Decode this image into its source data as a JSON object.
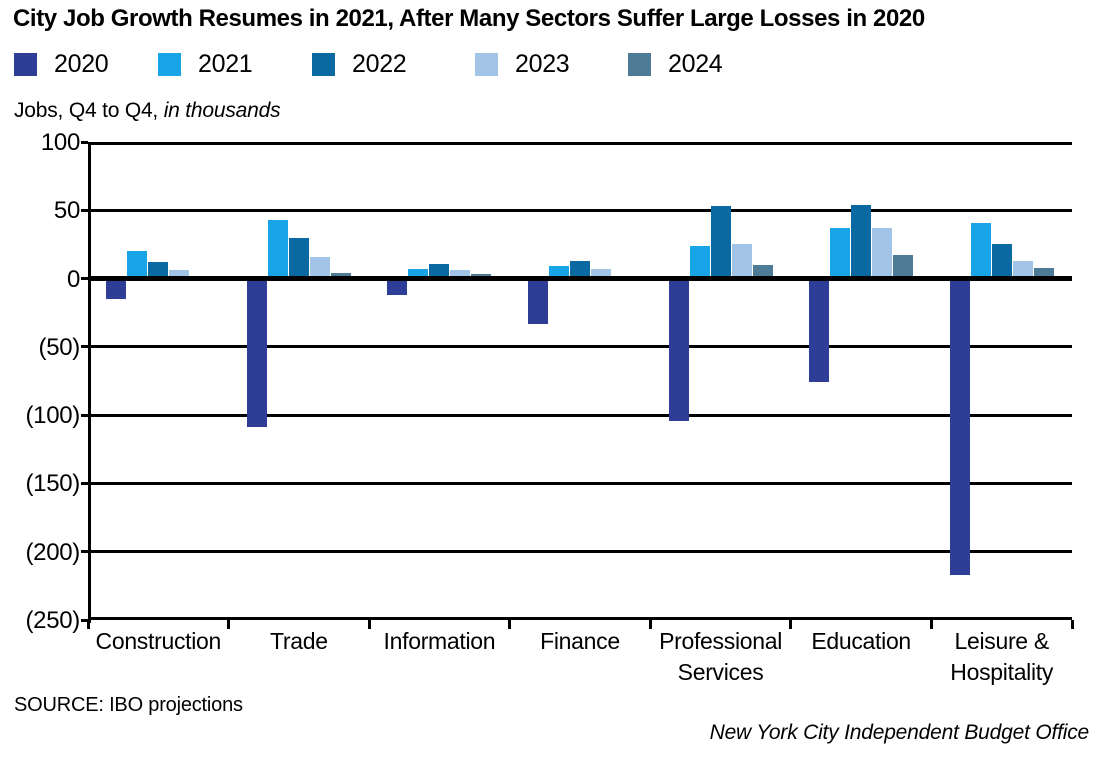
{
  "title": "City Job Growth Resumes in 2021, After Many Sectors Suffer Large Losses in 2020",
  "subtitle": {
    "text": "Jobs, Q4 to Q4, ",
    "italic": "in thousands"
  },
  "source": "SOURCE: IBO projections",
  "attribution": "New York City Independent Budget Office",
  "chart_data": {
    "type": "bar",
    "title": "City Job Growth Resumes in 2021, After Many Sectors Suffer Large Losses in 2020",
    "ylabel": "Jobs, Q4 to Q4, in thousands",
    "categories": [
      "Construction",
      "Trade",
      "Information",
      "Finance",
      "Professional Services",
      "Education",
      "Leisure & Hospitality"
    ],
    "series": [
      {
        "name": "2020",
        "color": "#2e3d96",
        "values": [
          -15,
          -109,
          -12,
          -33,
          -104,
          -76,
          -217
        ]
      },
      {
        "name": "2021",
        "color": "#17a5e8",
        "values": [
          20,
          43,
          7,
          9,
          24,
          37,
          41
        ]
      },
      {
        "name": "2022",
        "color": "#0a69a0",
        "values": [
          12,
          30,
          11,
          13,
          53,
          54,
          25
        ]
      },
      {
        "name": "2023",
        "color": "#a2c4e6",
        "values": [
          6,
          16,
          6,
          7,
          25,
          37,
          13
        ]
      },
      {
        "name": "2024",
        "color": "#4e7b95",
        "values": [
          2,
          4,
          3,
          2,
          10,
          17,
          8
        ]
      }
    ],
    "ylim": [
      -250,
      100
    ],
    "ytick_step": 50,
    "ytick_labels": [
      "100",
      "50",
      "0",
      "(50)",
      "(100)",
      "(150)",
      "(200)",
      "(250)"
    ],
    "negative_label_format": "parentheses",
    "grid": true,
    "legend_position": "top-left"
  }
}
